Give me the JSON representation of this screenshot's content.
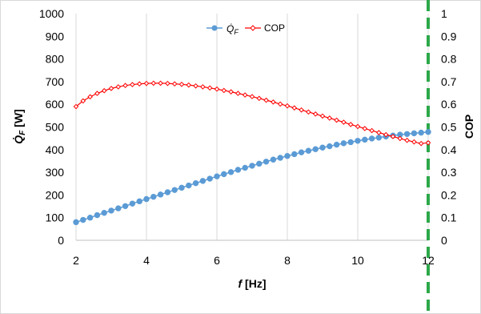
{
  "chart_data": {
    "type": "line",
    "xlabel": "f [Hz]",
    "ylabel": "Q̇F [W]",
    "y2label": "COP",
    "xlim": [
      2,
      12
    ],
    "ylim": [
      0,
      1000
    ],
    "y2lim": [
      0,
      1
    ],
    "x_ticks": [
      "2",
      "4",
      "6",
      "8",
      "10",
      "12"
    ],
    "y_ticks": [
      "0",
      "100",
      "200",
      "300",
      "400",
      "500",
      "600",
      "700",
      "800",
      "900",
      "1000"
    ],
    "y2_ticks": [
      "0",
      "0.1",
      "0.2",
      "0.3",
      "0.4",
      "0.5",
      "0.6",
      "0.7",
      "0.8",
      "0.9",
      "1"
    ],
    "grid": "vertical",
    "legend_position": "top-center",
    "vertical_line": {
      "x": 12,
      "style": "dashed",
      "color": "#2ca84a"
    },
    "series": [
      {
        "name": "Q̇F",
        "axis": "left",
        "color": "#5b9bd5",
        "marker": "circle",
        "x": [
          2,
          2.2,
          2.4,
          2.6,
          2.8,
          3,
          3.2,
          3.4,
          3.6,
          3.8,
          4,
          4.2,
          4.4,
          4.6,
          4.8,
          5,
          5.2,
          5.4,
          5.6,
          5.8,
          6,
          6.2,
          6.4,
          6.6,
          6.8,
          7,
          7.2,
          7.4,
          7.6,
          7.8,
          8,
          8.2,
          8.4,
          8.6,
          8.8,
          9,
          9.2,
          9.4,
          9.6,
          9.8,
          10,
          10.2,
          10.4,
          10.6,
          10.8,
          11,
          11.2,
          11.4,
          11.6,
          11.8,
          12
        ],
        "values": [
          80,
          90,
          100,
          111,
          121,
          131,
          141,
          151,
          162,
          172,
          182,
          192,
          202,
          212,
          222,
          232,
          242,
          252,
          262,
          272,
          282,
          292,
          301,
          311,
          320,
          329,
          338,
          347,
          356,
          364,
          372,
          380,
          388,
          395,
          402,
          409,
          415,
          422,
          428,
          433,
          439,
          444,
          449,
          453,
          458,
          462,
          466,
          469,
          472,
          475,
          478
        ]
      },
      {
        "name": "COP",
        "axis": "right",
        "color": "#ff0000",
        "marker": "diamond",
        "x": [
          2,
          2.2,
          2.4,
          2.6,
          2.8,
          3,
          3.2,
          3.4,
          3.6,
          3.8,
          4,
          4.2,
          4.4,
          4.6,
          4.8,
          5,
          5.2,
          5.4,
          5.6,
          5.8,
          6,
          6.2,
          6.4,
          6.6,
          6.8,
          7,
          7.2,
          7.4,
          7.6,
          7.8,
          8,
          8.2,
          8.4,
          8.6,
          8.8,
          9,
          9.2,
          9.4,
          9.6,
          9.8,
          10,
          10.2,
          10.4,
          10.6,
          10.8,
          11,
          11.2,
          11.4,
          11.6,
          11.8,
          12
        ],
        "values": [
          0.59,
          0.615,
          0.633,
          0.648,
          0.66,
          0.67,
          0.677,
          0.683,
          0.687,
          0.69,
          0.692,
          0.693,
          0.693,
          0.692,
          0.69,
          0.688,
          0.685,
          0.681,
          0.677,
          0.672,
          0.667,
          0.661,
          0.655,
          0.648,
          0.641,
          0.634,
          0.626,
          0.618,
          0.61,
          0.601,
          0.593,
          0.584,
          0.575,
          0.566,
          0.557,
          0.548,
          0.539,
          0.53,
          0.521,
          0.511,
          0.502,
          0.493,
          0.484,
          0.475,
          0.466,
          0.458,
          0.449,
          0.441,
          0.434,
          0.427,
          0.43
        ]
      }
    ]
  }
}
